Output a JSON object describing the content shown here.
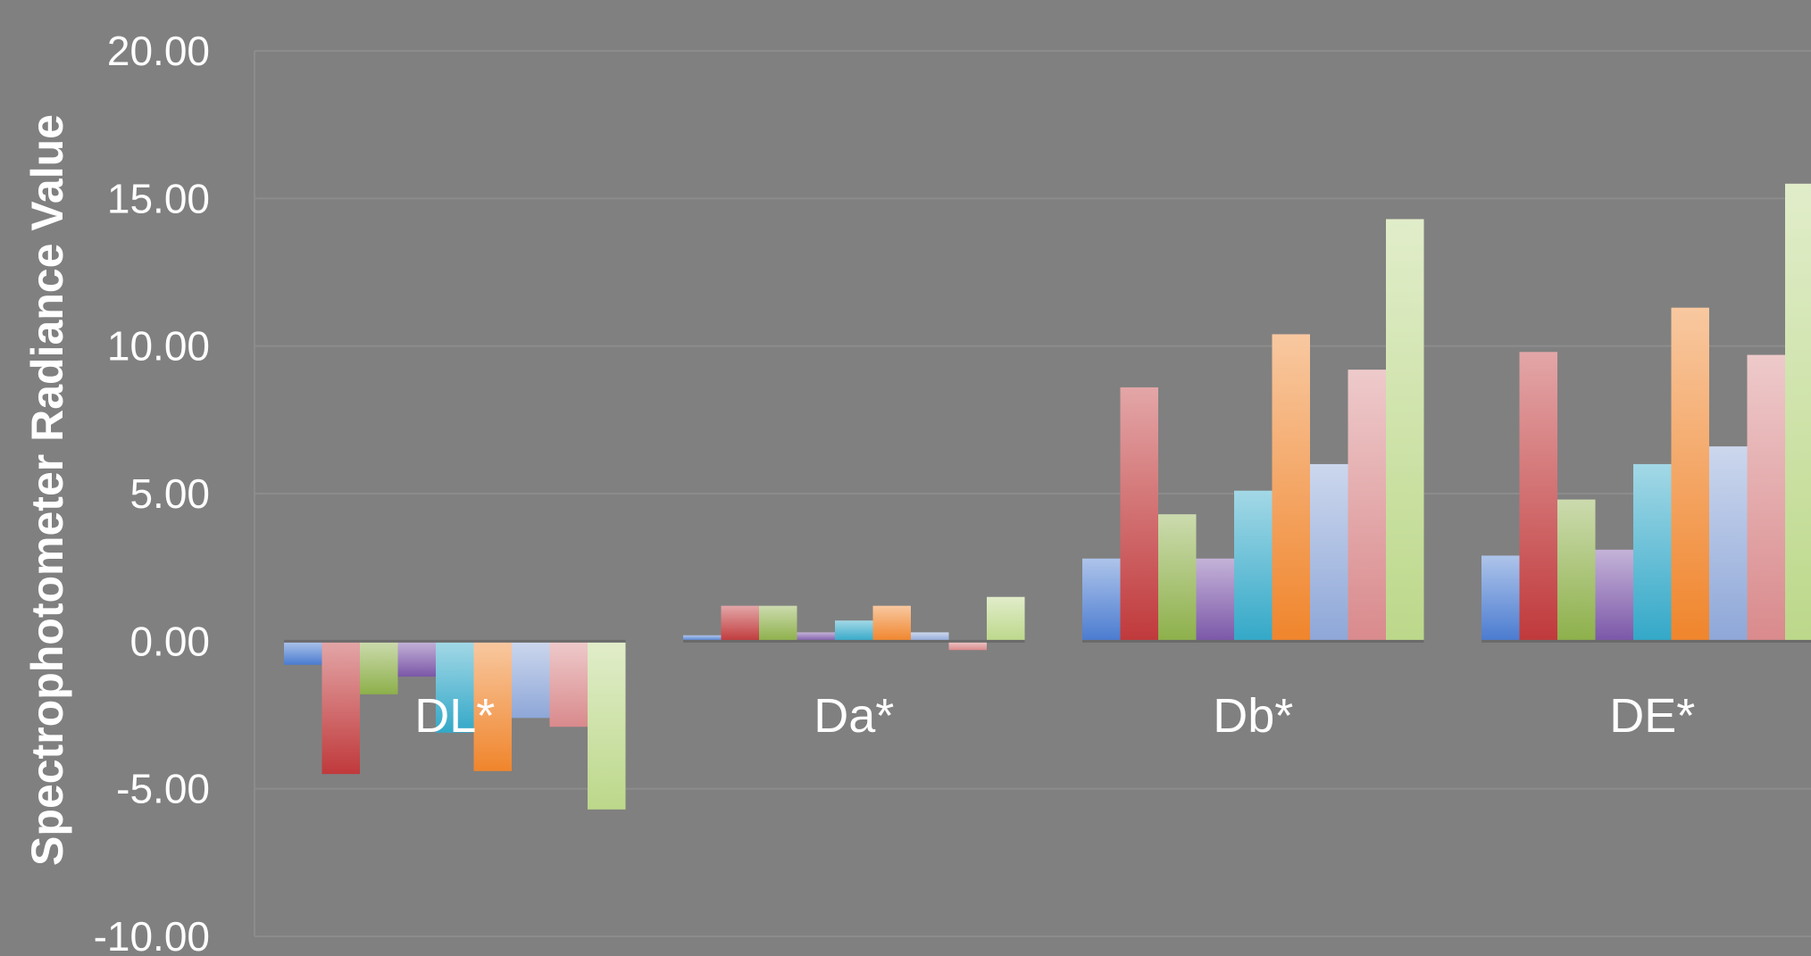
{
  "chart_data": {
    "type": "bar",
    "ylabel": "Spectrophotometer Radiance Value",
    "ylim": [
      -10,
      20
    ],
    "yticks": [
      "20.00",
      "15.00",
      "10.00",
      "5.00",
      "0.00",
      "-5.00",
      "-10.00"
    ],
    "ytick_values": [
      20,
      15,
      10,
      5,
      0,
      -5,
      -10
    ],
    "grid": true,
    "legend": "none",
    "categories": [
      "DL*",
      "Da*",
      "Db*",
      "DE*"
    ],
    "series": [
      {
        "color": "#4a7bd0",
        "values": [
          -0.8,
          0.2,
          2.8,
          2.9
        ]
      },
      {
        "color": "#c0393b",
        "values": [
          -4.5,
          1.2,
          8.6,
          9.8
        ]
      },
      {
        "color": "#8db04a",
        "values": [
          -1.8,
          1.2,
          4.3,
          4.8
        ]
      },
      {
        "color": "#7b57a8",
        "values": [
          -1.2,
          0.3,
          2.8,
          3.1
        ]
      },
      {
        "color": "#33a8c8",
        "values": [
          -3.1,
          0.7,
          5.1,
          6.0
        ]
      },
      {
        "color": "#f0852c",
        "values": [
          -4.4,
          1.2,
          10.4,
          11.3
        ]
      },
      {
        "color": "#8ea7d8",
        "values": [
          -2.6,
          0.3,
          6.0,
          6.6
        ]
      },
      {
        "color": "#d98a8c",
        "values": [
          -2.9,
          -0.3,
          9.2,
          9.7
        ]
      },
      {
        "color": "#bcd88a",
        "values": [
          -5.7,
          1.5,
          14.3,
          15.5
        ]
      }
    ]
  }
}
